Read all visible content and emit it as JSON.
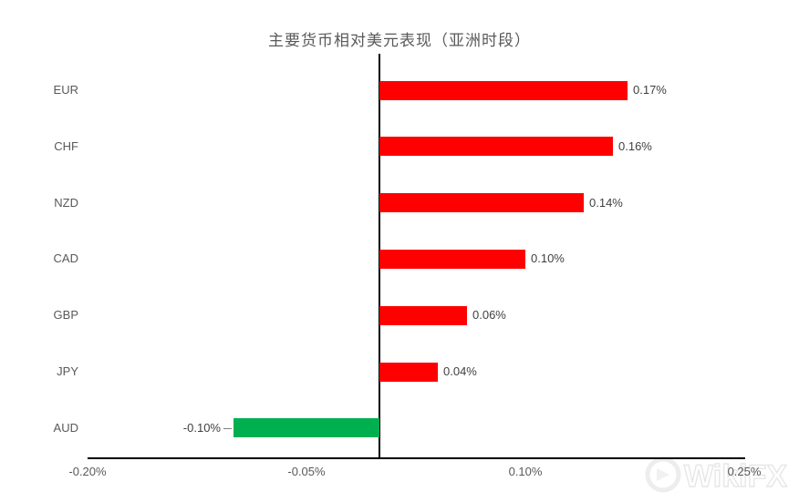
{
  "chart_data": {
    "type": "bar",
    "orientation": "horizontal",
    "title": "主要货币相对美元表现（亚洲时段）",
    "categories": [
      "EUR",
      "CHF",
      "NZD",
      "CAD",
      "GBP",
      "JPY",
      "AUD"
    ],
    "values": [
      0.17,
      0.16,
      0.14,
      0.1,
      0.06,
      0.04,
      -0.1
    ],
    "value_labels": [
      "0.17%",
      "0.16%",
      "0.14%",
      "0.10%",
      "0.06%",
      "0.04%",
      "-0.10%"
    ],
    "xlabel": "",
    "ylabel": "",
    "xlim": [
      -0.2,
      0.25
    ],
    "x_ticks": [
      "-0.20%",
      "-0.05%",
      "0.10%",
      "0.25%"
    ],
    "x_tick_values": [
      -0.2,
      -0.05,
      0.1,
      0.25
    ],
    "grid": false,
    "legend": false,
    "colors": {
      "positive_bar": "#ff0000",
      "negative_bar": "#00b050",
      "axis_line": "#000000",
      "category_text": "#595959",
      "value_text": "#404040",
      "tick_text": "#595959",
      "title_text": "#595959"
    }
  },
  "watermark": {
    "text": "WikiFX"
  }
}
